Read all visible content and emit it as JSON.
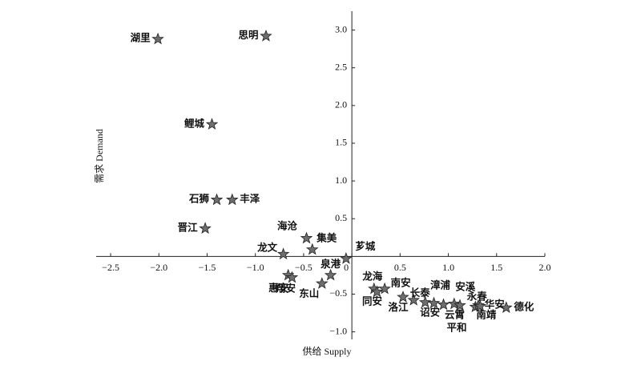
{
  "chart_data": {
    "type": "scatter",
    "x_label": "供给 Supply",
    "y_label": "需求 Demand",
    "marker": "star",
    "color": "#6e6e6e",
    "xlim": [
      -2.65,
      2.0
    ],
    "ylim": [
      -1.1,
      3.25
    ],
    "xticks": [
      {
        "value": -2.5,
        "label": "−2.5"
      },
      {
        "value": -2,
        "label": "−2.0"
      },
      {
        "value": -1.5,
        "label": "−1.5"
      },
      {
        "value": -1,
        "label": "−1.0"
      },
      {
        "value": -0.5,
        "label": "−0.5"
      },
      0,
      0.5,
      {
        "value": 1,
        "label": "1.0"
      },
      1.5,
      {
        "value": 2,
        "label": "2.0"
      }
    ],
    "yticks": [
      {
        "value": -1,
        "label": "−1.0"
      },
      {
        "value": -0.5,
        "label": "−0.5"
      },
      0.5,
      {
        "value": 1,
        "label": "1.0"
      },
      1.5,
      {
        "value": 2,
        "label": "2.0"
      },
      2.5,
      {
        "value": 3,
        "label": "3.0"
      }
    ],
    "labels": [
      "湖里",
      "思明",
      "鲤城",
      "石狮",
      "丰泽",
      "晋江",
      "海沧",
      "集美",
      "龙文",
      "芗城",
      "泉港",
      "惠安",
      "翔安",
      "东山",
      "龙海",
      "同安",
      "南安",
      "洛江",
      "长泰",
      "诏安",
      "漳浦",
      "云霄",
      "安溪",
      "平和",
      "永春",
      "南靖",
      "华安",
      "德化"
    ],
    "x": [
      -2.01,
      -0.89,
      -1.45,
      -1.4,
      -1.24,
      -1.52,
      -0.47,
      -0.41,
      -0.71,
      -0.06,
      -0.22,
      -0.66,
      -0.62,
      -0.31,
      0.23,
      0.26,
      0.34,
      0.53,
      0.64,
      0.76,
      0.85,
      0.95,
      1.06,
      1.12,
      1.28,
      1.31,
      1.33,
      1.6
    ],
    "y": [
      2.88,
      2.92,
      1.75,
      0.75,
      0.75,
      0.37,
      0.24,
      0.09,
      0.03,
      -0.03,
      -0.25,
      -0.25,
      -0.28,
      -0.36,
      -0.43,
      -0.47,
      -0.43,
      -0.54,
      -0.58,
      -0.61,
      -0.62,
      -0.64,
      -0.63,
      -0.65,
      -0.67,
      -0.65,
      -0.66,
      -0.68
    ]
  }
}
